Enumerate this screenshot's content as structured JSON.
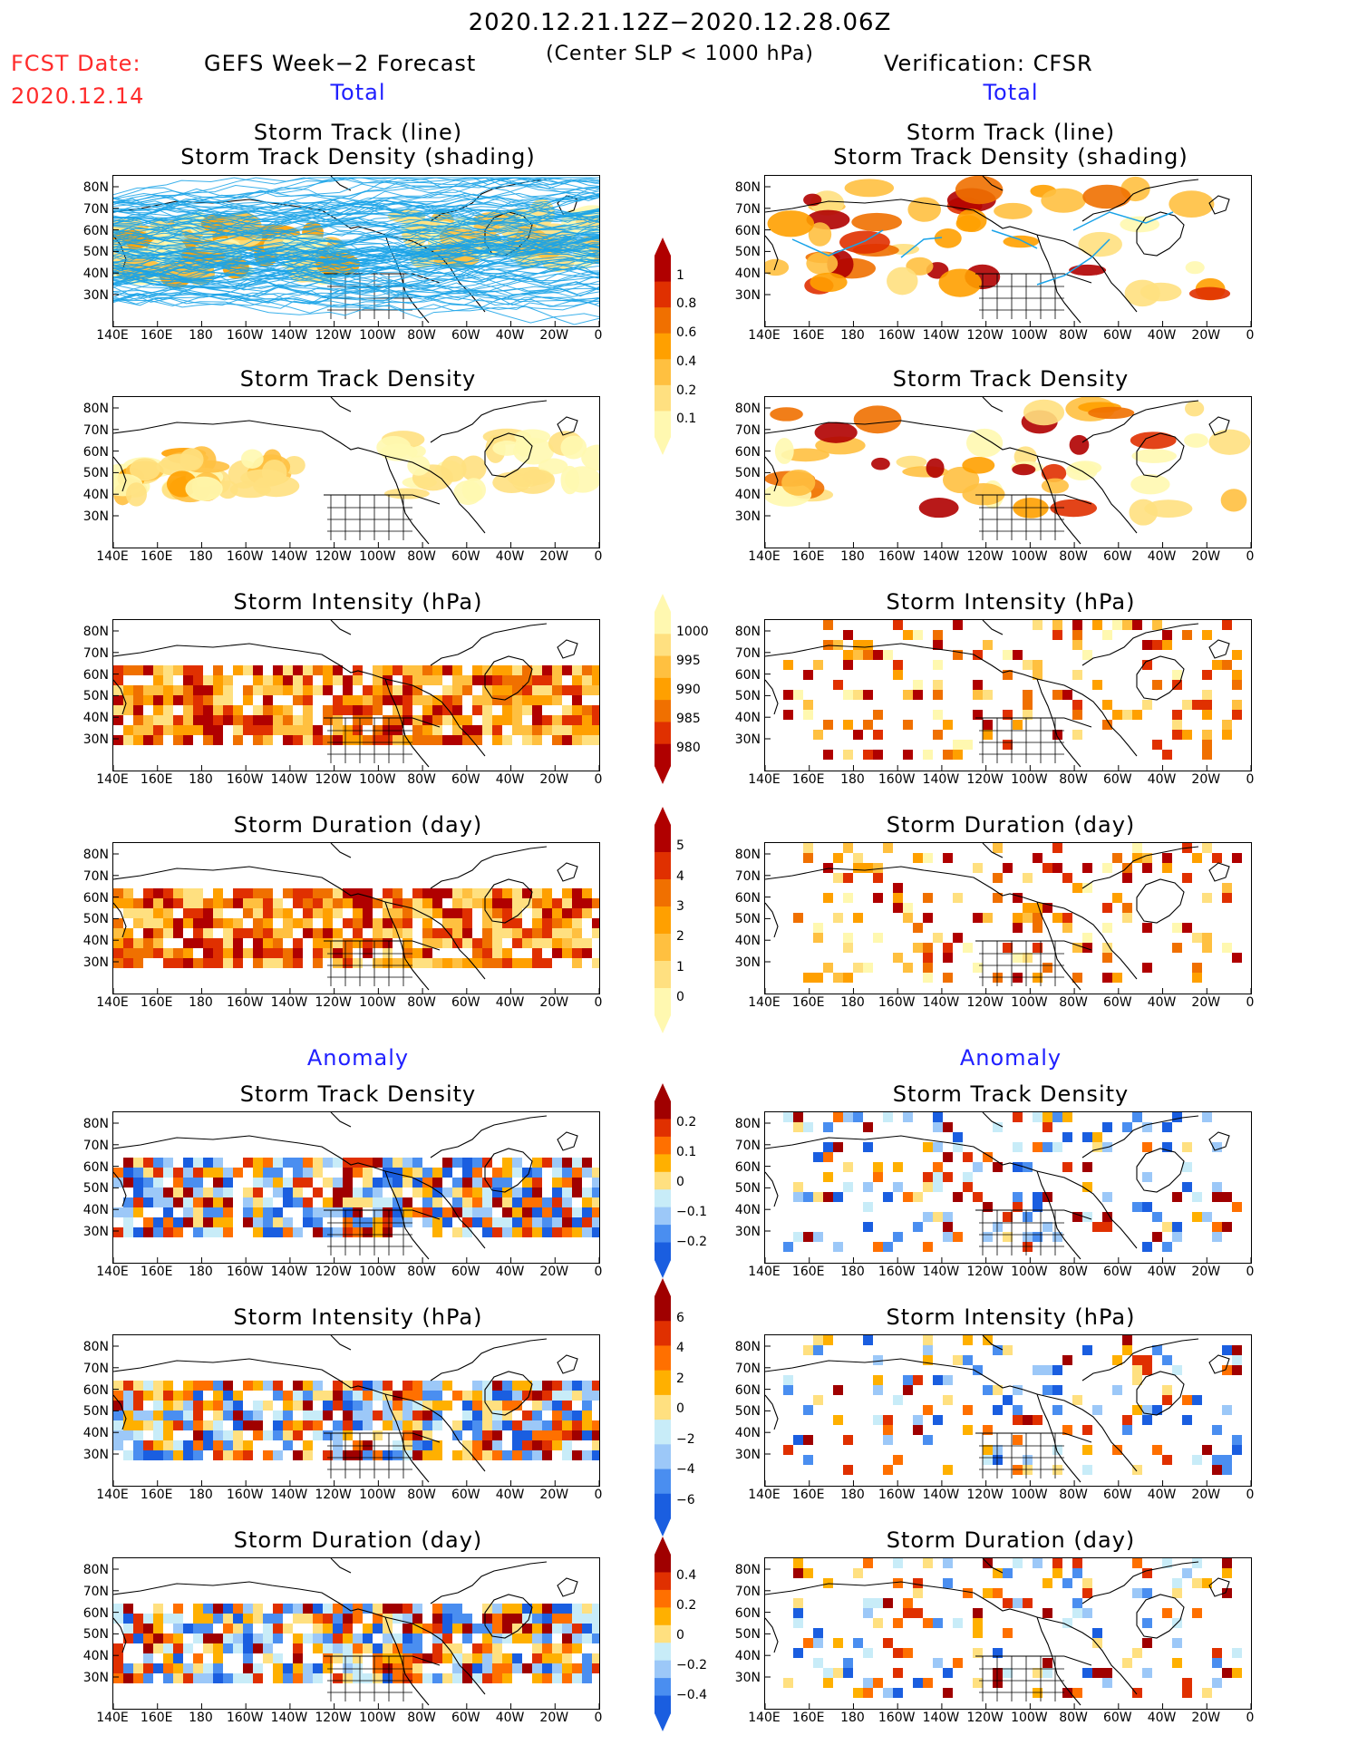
{
  "header": {
    "title": "2020.12.21.12Z−2020.12.28.06Z",
    "subtitle": "(Center SLP < 1000 hPa)",
    "fcst_label": "FCST Date:",
    "fcst_date": "2020.12.14",
    "left_title": "GEFS Week−2 Forecast",
    "right_title": "Verification: CFSR"
  },
  "sections": {
    "total_left": "Total",
    "total_right": "Total",
    "anomaly_left": "Anomaly",
    "anomaly_right": "Anomaly"
  },
  "panel_titles": {
    "track_line": "Storm Track (line)",
    "track_shading": "Storm Track Density (shading)",
    "density": "Storm Track Density",
    "intensity": "Storm Intensity (hPa)",
    "duration": "Storm Duration (day)"
  },
  "axes": {
    "lat_labels": [
      "80N",
      "70N",
      "60N",
      "50N",
      "40N",
      "30N"
    ],
    "lon_labels": [
      "140E",
      "160E",
      "180",
      "160W",
      "140W",
      "120W",
      "100W",
      "80W",
      "60W",
      "40W",
      "20W",
      "0"
    ]
  },
  "colorbars": {
    "density_total": [
      "1",
      "0.8",
      "0.6",
      "0.4",
      "0.2",
      "0.1"
    ],
    "intensity_total": [
      "1000",
      "995",
      "990",
      "985",
      "980"
    ],
    "duration_total": [
      "5",
      "4",
      "3",
      "2",
      "1",
      "0"
    ],
    "density_anom": [
      "0.2",
      "0.1",
      "0",
      "−0.1",
      "−0.2"
    ],
    "intensity_anom": [
      "6",
      "4",
      "2",
      "0",
      "−2",
      "−4",
      "−6"
    ],
    "duration_anom": [
      "0.4",
      "0.2",
      "0",
      "−0.2",
      "−0.4"
    ]
  },
  "colors": {
    "track_line": "#1aa3e8",
    "seq_shading": [
      "#fff8b0",
      "#ffe080",
      "#ffc040",
      "#ffa000",
      "#f07000",
      "#e03000",
      "#b00000"
    ],
    "div_shading": [
      "#1a5ee0",
      "#4a8ef0",
      "#9cc8f8",
      "#c8ecf8",
      "#ffe080",
      "#ffb000",
      "#ff7000",
      "#e03000",
      "#a00000"
    ]
  }
}
